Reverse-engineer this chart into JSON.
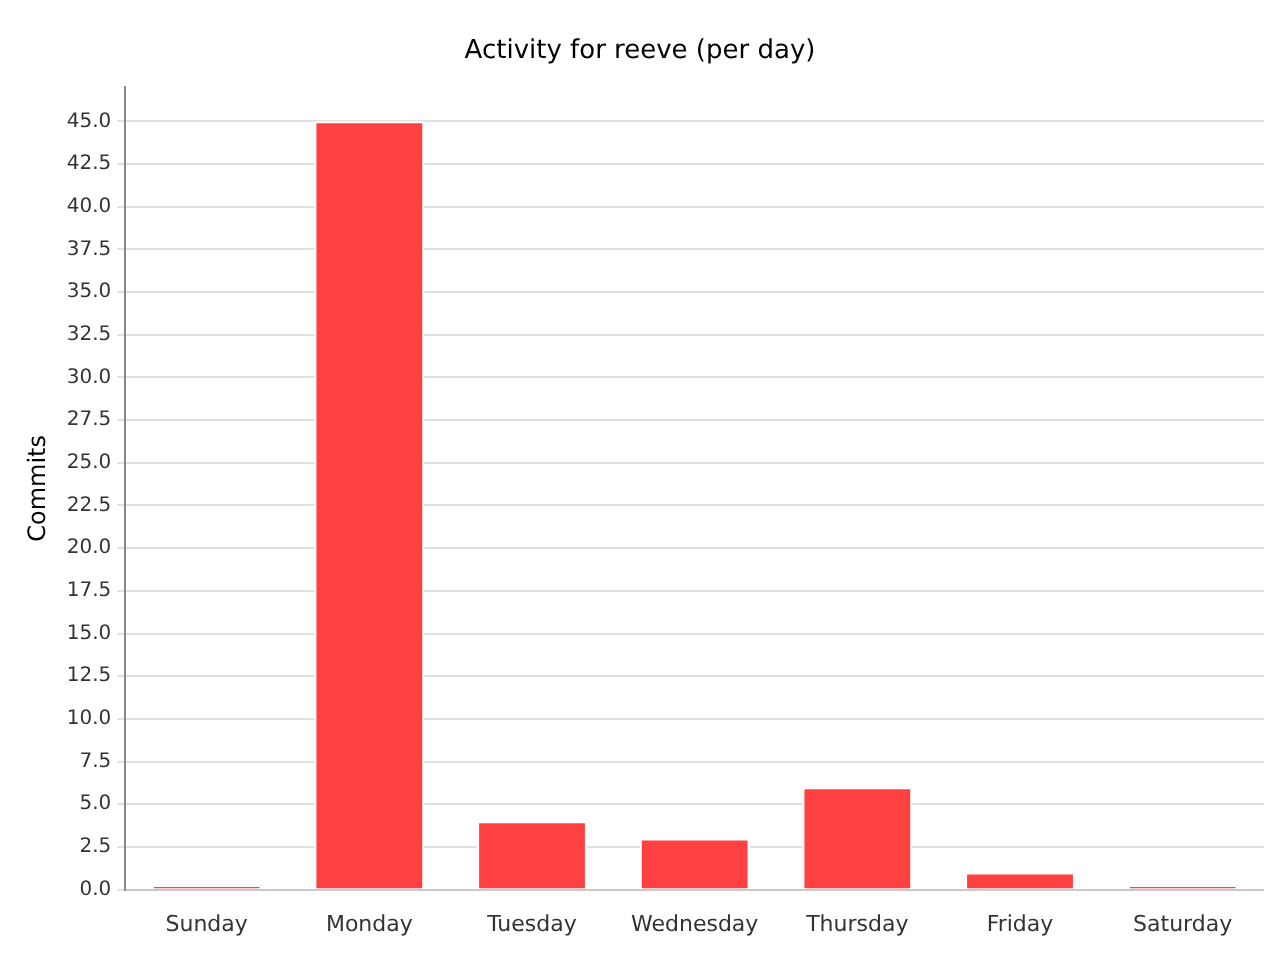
{
  "chart_data": {
    "type": "bar",
    "title": "Activity for reeve (per day)",
    "ylabel": "Commits",
    "categories": [
      "Sunday",
      "Monday",
      "Tuesday",
      "Wednesday",
      "Thursday",
      "Friday",
      "Saturday"
    ],
    "values": [
      0,
      45,
      4,
      3,
      6,
      1,
      0
    ],
    "color": "#ff4040",
    "ylim": [
      0,
      47
    ],
    "yticks": [
      {
        "value": 0,
        "label": "0.0"
      },
      {
        "value": 2.5,
        "label": "2.5"
      },
      {
        "value": 5,
        "label": "5.0"
      },
      {
        "value": 7.5,
        "label": "7.5"
      },
      {
        "value": 10,
        "label": "10.0"
      },
      {
        "value": 12.5,
        "label": "12.5"
      },
      {
        "value": 15,
        "label": "15.0"
      },
      {
        "value": 17.5,
        "label": "17.5"
      },
      {
        "value": 20,
        "label": "20.0"
      },
      {
        "value": 22.5,
        "label": "22.5"
      },
      {
        "value": 25,
        "label": "25.0"
      },
      {
        "value": 27.5,
        "label": "27.5"
      },
      {
        "value": 30,
        "label": "30.0"
      },
      {
        "value": 32.5,
        "label": "32.5"
      },
      {
        "value": 35,
        "label": "35.0"
      },
      {
        "value": 37.5,
        "label": "37.5"
      },
      {
        "value": 40,
        "label": "40.0"
      },
      {
        "value": 42.5,
        "label": "42.5"
      },
      {
        "value": 45,
        "label": "45.0"
      }
    ],
    "grid": "y",
    "legend": false
  }
}
